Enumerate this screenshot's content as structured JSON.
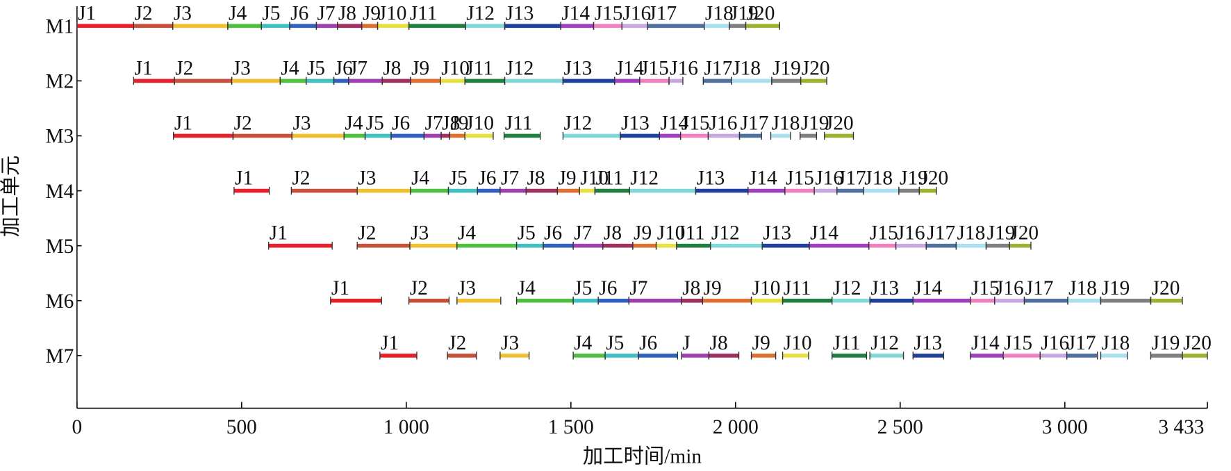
{
  "chart_data": {
    "type": "gantt",
    "xlabel": "加工时间/min",
    "ylabel": "加工单元",
    "xlim": [
      0,
      3433
    ],
    "xticks": [
      0,
      500,
      {
        "value": 1000,
        "label": "1 000"
      },
      {
        "value": 1500,
        "label": "1 500"
      },
      {
        "value": 2000,
        "label": "2 000"
      },
      {
        "value": 2500,
        "label": "2 500"
      },
      {
        "value": 3000,
        "label": "3 000"
      },
      {
        "value": 3433,
        "label": "3 433"
      }
    ],
    "colors": [
      "#e8202a",
      "#c8503a",
      "#f0c030",
      "#50c040",
      "#40c0c0",
      "#3060c0",
      "#a040b0",
      "#a03060",
      "#e07030",
      "#e8e040",
      "#208040",
      "#80d8d8",
      "#2040a0",
      "#a040c0",
      "#f080c0",
      "#c8a8e0",
      "#5070a0",
      "#a8e0f0",
      "#808080",
      "#a0b030"
    ],
    "categories": [
      "M1",
      "M2",
      "M3",
      "M4",
      "M5",
      "M6",
      "M7"
    ],
    "tasks": [
      [
        {
          "label": "J1",
          "start": 0,
          "end": 172
        },
        {
          "label": "J2",
          "start": 172,
          "end": 291
        },
        {
          "label": "J3",
          "start": 291,
          "end": 458
        },
        {
          "label": "J4",
          "start": 458,
          "end": 560
        },
        {
          "label": "J5",
          "start": 560,
          "end": 646
        },
        {
          "label": "J6",
          "start": 646,
          "end": 727
        },
        {
          "label": "J7",
          "start": 727,
          "end": 791
        },
        {
          "label": "J8",
          "start": 791,
          "end": 865
        },
        {
          "label": "J9",
          "start": 865,
          "end": 913
        },
        {
          "label": "J10",
          "start": 913,
          "end": 1008
        },
        {
          "label": "J11",
          "start": 1008,
          "end": 1180
        },
        {
          "label": "J12",
          "start": 1180,
          "end": 1299
        },
        {
          "label": "J13",
          "start": 1299,
          "end": 1469
        },
        {
          "label": "J14",
          "start": 1469,
          "end": 1569
        },
        {
          "label": "J15",
          "start": 1569,
          "end": 1655
        },
        {
          "label": "J16",
          "start": 1655,
          "end": 1733
        },
        {
          "label": "J17",
          "start": 1733,
          "end": 1905
        },
        {
          "label": "J18",
          "start": 1905,
          "end": 1981
        },
        {
          "label": "J19",
          "start": 1981,
          "end": 2031
        },
        {
          "label": "J20",
          "start": 2031,
          "end": 2134
        }
      ],
      [
        {
          "label": "J1",
          "start": 172,
          "end": 296
        },
        {
          "label": "J2",
          "start": 296,
          "end": 470
        },
        {
          "label": "J3",
          "start": 470,
          "end": 617
        },
        {
          "label": "J4",
          "start": 617,
          "end": 696
        },
        {
          "label": "J5",
          "start": 696,
          "end": 780
        },
        {
          "label": "J6",
          "start": 780,
          "end": 825
        },
        {
          "label": "J7",
          "start": 825,
          "end": 927
        },
        {
          "label": "J8",
          "start": 927,
          "end": 1013
        },
        {
          "label": "J9",
          "start": 1013,
          "end": 1104
        },
        {
          "label": "J10",
          "start": 1104,
          "end": 1178
        },
        {
          "label": "J11",
          "start": 1178,
          "end": 1299
        },
        {
          "label": "J12",
          "start": 1299,
          "end": 1476
        },
        {
          "label": "J13",
          "start": 1476,
          "end": 1633
        },
        {
          "label": "J14",
          "start": 1633,
          "end": 1709
        },
        {
          "label": "J15",
          "start": 1709,
          "end": 1798
        },
        {
          "label": "J16",
          "start": 1798,
          "end": 1840
        },
        {
          "label": "J17",
          "start": 1902,
          "end": 1988
        },
        {
          "label": "J18",
          "start": 1988,
          "end": 2110
        },
        {
          "label": "J19",
          "start": 2110,
          "end": 2198
        },
        {
          "label": "J20",
          "start": 2198,
          "end": 2277
        }
      ],
      [
        {
          "label": "J1",
          "start": 293,
          "end": 474
        },
        {
          "label": "J2",
          "start": 474,
          "end": 653
        },
        {
          "label": "J3",
          "start": 653,
          "end": 811
        },
        {
          "label": "J4",
          "start": 811,
          "end": 875
        },
        {
          "label": "J5",
          "start": 875,
          "end": 954
        },
        {
          "label": "J6",
          "start": 954,
          "end": 1054
        },
        {
          "label": "J7",
          "start": 1054,
          "end": 1106
        },
        {
          "label": "J8",
          "start": 1106,
          "end": 1132
        },
        {
          "label": "J9",
          "start": 1132,
          "end": 1178
        },
        {
          "label": "J10",
          "start": 1178,
          "end": 1264
        },
        {
          "label": "J11",
          "start": 1297,
          "end": 1407
        },
        {
          "label": "J12",
          "start": 1476,
          "end": 1650
        },
        {
          "label": "J13",
          "start": 1650,
          "end": 1769
        },
        {
          "label": "J14",
          "start": 1769,
          "end": 1833
        },
        {
          "label": "J15",
          "start": 1833,
          "end": 1917
        },
        {
          "label": "J16",
          "start": 1917,
          "end": 2012
        },
        {
          "label": "J17",
          "start": 2012,
          "end": 2079
        },
        {
          "label": "J18",
          "start": 2107,
          "end": 2167
        },
        {
          "label": "J19",
          "start": 2196,
          "end": 2246
        },
        {
          "label": "J20",
          "start": 2270,
          "end": 2358
        }
      ],
      [
        {
          "label": "J1",
          "start": 477,
          "end": 584
        },
        {
          "label": "J2",
          "start": 651,
          "end": 851
        },
        {
          "label": "J3",
          "start": 851,
          "end": 1013
        },
        {
          "label": "J4",
          "start": 1013,
          "end": 1128
        },
        {
          "label": "J5",
          "start": 1128,
          "end": 1216
        },
        {
          "label": "J6",
          "start": 1216,
          "end": 1285
        },
        {
          "label": "J7",
          "start": 1285,
          "end": 1364
        },
        {
          "label": "J8",
          "start": 1364,
          "end": 1459
        },
        {
          "label": "J9",
          "start": 1459,
          "end": 1526
        },
        {
          "label": "J10",
          "start": 1526,
          "end": 1573
        },
        {
          "label": "J11",
          "start": 1573,
          "end": 1678
        },
        {
          "label": "J12",
          "start": 1678,
          "end": 1879
        },
        {
          "label": "J13",
          "start": 1879,
          "end": 2038
        },
        {
          "label": "J14",
          "start": 2038,
          "end": 2150
        },
        {
          "label": "J15",
          "start": 2150,
          "end": 2239
        },
        {
          "label": "J16",
          "start": 2239,
          "end": 2308
        },
        {
          "label": "J17",
          "start": 2308,
          "end": 2389
        },
        {
          "label": "J18",
          "start": 2389,
          "end": 2496
        },
        {
          "label": "J19",
          "start": 2496,
          "end": 2558
        },
        {
          "label": "J20",
          "start": 2558,
          "end": 2610
        }
      ],
      [
        {
          "label": "J1",
          "start": 582,
          "end": 775
        },
        {
          "label": "J2",
          "start": 851,
          "end": 1011
        },
        {
          "label": "J3",
          "start": 1011,
          "end": 1154
        },
        {
          "label": "J4",
          "start": 1154,
          "end": 1335
        },
        {
          "label": "J5",
          "start": 1335,
          "end": 1416
        },
        {
          "label": "J6",
          "start": 1416,
          "end": 1507
        },
        {
          "label": "J7",
          "start": 1507,
          "end": 1597
        },
        {
          "label": "J8",
          "start": 1597,
          "end": 1688
        },
        {
          "label": "J9",
          "start": 1688,
          "end": 1759
        },
        {
          "label": "J10",
          "start": 1759,
          "end": 1821
        },
        {
          "label": "J11",
          "start": 1821,
          "end": 1924
        },
        {
          "label": "J12",
          "start": 1924,
          "end": 2081
        },
        {
          "label": "J13",
          "start": 2081,
          "end": 2224
        },
        {
          "label": "J14",
          "start": 2224,
          "end": 2405
        },
        {
          "label": "J15",
          "start": 2405,
          "end": 2487
        },
        {
          "label": "J16",
          "start": 2487,
          "end": 2579
        },
        {
          "label": "J17",
          "start": 2579,
          "end": 2670
        },
        {
          "label": "J18",
          "start": 2670,
          "end": 2761
        },
        {
          "label": "J19",
          "start": 2761,
          "end": 2832
        },
        {
          "label": "J20",
          "start": 2832,
          "end": 2897
        }
      ],
      [
        {
          "label": "J1",
          "start": 770,
          "end": 925
        },
        {
          "label": "J2",
          "start": 1008,
          "end": 1130
        },
        {
          "label": "J3",
          "start": 1154,
          "end": 1287
        },
        {
          "label": "J4",
          "start": 1335,
          "end": 1507
        },
        {
          "label": "J5",
          "start": 1507,
          "end": 1583
        },
        {
          "label": "J6",
          "start": 1583,
          "end": 1676
        },
        {
          "label": "J7",
          "start": 1676,
          "end": 1836
        },
        {
          "label": "J8",
          "start": 1836,
          "end": 1900
        },
        {
          "label": "J9",
          "start": 1900,
          "end": 2048
        },
        {
          "label": "J10",
          "start": 2048,
          "end": 2143
        },
        {
          "label": "J11",
          "start": 2143,
          "end": 2293
        },
        {
          "label": "J12",
          "start": 2293,
          "end": 2408
        },
        {
          "label": "J13",
          "start": 2408,
          "end": 2539
        },
        {
          "label": "J14",
          "start": 2539,
          "end": 2713
        },
        {
          "label": "J15",
          "start": 2713,
          "end": 2787
        },
        {
          "label": "J16",
          "start": 2787,
          "end": 2877
        },
        {
          "label": "J17",
          "start": 2877,
          "end": 3009
        },
        {
          "label": "J18",
          "start": 3009,
          "end": 3109
        },
        {
          "label": "J19",
          "start": 3109,
          "end": 3261
        },
        {
          "label": "J20",
          "start": 3261,
          "end": 3357
        }
      ],
      [
        {
          "label": "J1",
          "start": 920,
          "end": 1032
        },
        {
          "label": "J2",
          "start": 1125,
          "end": 1213
        },
        {
          "label": "J3",
          "start": 1285,
          "end": 1373
        },
        {
          "label": "J4",
          "start": 1507,
          "end": 1604
        },
        {
          "label": "J5",
          "start": 1604,
          "end": 1705
        },
        {
          "label": "J6",
          "start": 1705,
          "end": 1824
        },
        {
          "label": "J",
          "start": 1836,
          "end": 1919
        },
        {
          "label": "J8",
          "start": 1919,
          "end": 2010
        },
        {
          "label": "J9",
          "start": 2048,
          "end": 2122
        },
        {
          "label": "J10",
          "start": 2143,
          "end": 2222
        },
        {
          "label": "J11",
          "start": 2293,
          "end": 2398
        },
        {
          "label": "J12",
          "start": 2408,
          "end": 2510
        },
        {
          "label": "J13",
          "start": 2539,
          "end": 2632
        },
        {
          "label": "J14",
          "start": 2713,
          "end": 2813
        },
        {
          "label": "J15",
          "start": 2813,
          "end": 2925
        },
        {
          "label": "J16",
          "start": 2925,
          "end": 3006
        },
        {
          "label": "J17",
          "start": 3006,
          "end": 3099
        },
        {
          "label": "J18",
          "start": 3109,
          "end": 3190
        },
        {
          "label": "J19",
          "start": 3261,
          "end": 3357
        },
        {
          "label": "J20",
          "start": 3357,
          "end": 3433
        }
      ]
    ]
  }
}
